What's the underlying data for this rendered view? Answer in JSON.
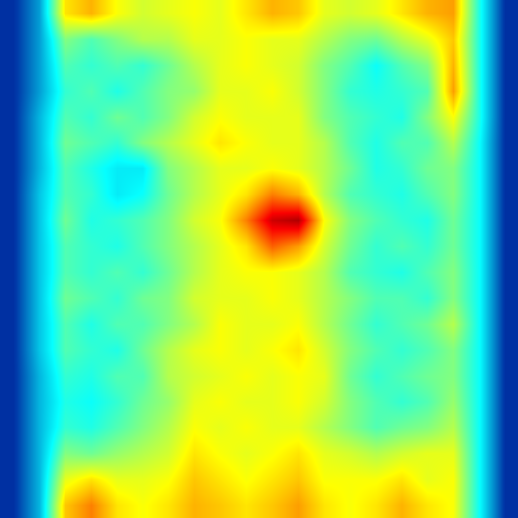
{
  "chart_data": {
    "type": "heatmap",
    "color": "Jet",
    "color_range": [
      0,
      1
    ],
    "tick_labels": false,
    "grid": false,
    "xlim": [
      -0.5,
      19.5
    ],
    "ylim": [
      19.5,
      -0.5
    ],
    "cells": [
      [
        0.1,
        0.25,
        0.65,
        0.7,
        0.62,
        0.58,
        0.6,
        0.62,
        0.6,
        0.65,
        0.7,
        0.68,
        0.6,
        0.58,
        0.6,
        0.65,
        0.7,
        0.72,
        0.4,
        0.1
      ],
      [
        0.1,
        0.25,
        0.5,
        0.45,
        0.5,
        0.55,
        0.55,
        0.6,
        0.6,
        0.62,
        0.6,
        0.6,
        0.55,
        0.5,
        0.48,
        0.55,
        0.6,
        0.68,
        0.4,
        0.1
      ],
      [
        0.1,
        0.25,
        0.45,
        0.42,
        0.45,
        0.42,
        0.48,
        0.55,
        0.6,
        0.62,
        0.6,
        0.58,
        0.5,
        0.45,
        0.38,
        0.45,
        0.5,
        0.7,
        0.4,
        0.1
      ],
      [
        0.1,
        0.25,
        0.42,
        0.45,
        0.4,
        0.45,
        0.5,
        0.52,
        0.6,
        0.6,
        0.62,
        0.58,
        0.5,
        0.42,
        0.4,
        0.42,
        0.45,
        0.72,
        0.4,
        0.1
      ],
      [
        0.1,
        0.28,
        0.45,
        0.42,
        0.48,
        0.45,
        0.5,
        0.58,
        0.62,
        0.6,
        0.6,
        0.6,
        0.5,
        0.45,
        0.42,
        0.4,
        0.5,
        0.62,
        0.4,
        0.1
      ],
      [
        0.1,
        0.28,
        0.48,
        0.45,
        0.42,
        0.5,
        0.55,
        0.6,
        0.65,
        0.62,
        0.6,
        0.6,
        0.55,
        0.45,
        0.4,
        0.45,
        0.45,
        0.55,
        0.38,
        0.1
      ],
      [
        0.1,
        0.28,
        0.45,
        0.4,
        0.35,
        0.35,
        0.5,
        0.55,
        0.6,
        0.6,
        0.62,
        0.6,
        0.55,
        0.48,
        0.4,
        0.42,
        0.48,
        0.5,
        0.38,
        0.1
      ],
      [
        0.1,
        0.3,
        0.45,
        0.42,
        0.35,
        0.38,
        0.48,
        0.55,
        0.6,
        0.65,
        0.75,
        0.7,
        0.55,
        0.45,
        0.42,
        0.4,
        0.45,
        0.5,
        0.38,
        0.1
      ],
      [
        0.1,
        0.3,
        0.48,
        0.4,
        0.42,
        0.45,
        0.5,
        0.58,
        0.62,
        0.75,
        0.92,
        0.95,
        0.62,
        0.5,
        0.45,
        0.42,
        0.4,
        0.48,
        0.38,
        0.1
      ],
      [
        0.1,
        0.3,
        0.45,
        0.42,
        0.4,
        0.45,
        0.5,
        0.55,
        0.6,
        0.65,
        0.78,
        0.72,
        0.58,
        0.48,
        0.42,
        0.45,
        0.42,
        0.48,
        0.38,
        0.1
      ],
      [
        0.1,
        0.3,
        0.45,
        0.42,
        0.45,
        0.42,
        0.48,
        0.55,
        0.6,
        0.62,
        0.62,
        0.6,
        0.55,
        0.45,
        0.42,
        0.4,
        0.45,
        0.5,
        0.38,
        0.1
      ],
      [
        0.1,
        0.3,
        0.48,
        0.45,
        0.42,
        0.48,
        0.5,
        0.58,
        0.6,
        0.6,
        0.62,
        0.6,
        0.55,
        0.5,
        0.45,
        0.45,
        0.42,
        0.5,
        0.38,
        0.1
      ],
      [
        0.1,
        0.3,
        0.45,
        0.4,
        0.45,
        0.45,
        0.5,
        0.55,
        0.62,
        0.6,
        0.6,
        0.62,
        0.55,
        0.48,
        0.42,
        0.45,
        0.48,
        0.55,
        0.38,
        0.1
      ],
      [
        0.1,
        0.3,
        0.45,
        0.42,
        0.4,
        0.48,
        0.55,
        0.6,
        0.62,
        0.6,
        0.62,
        0.65,
        0.58,
        0.5,
        0.45,
        0.42,
        0.45,
        0.5,
        0.38,
        0.1
      ],
      [
        0.1,
        0.28,
        0.42,
        0.4,
        0.45,
        0.45,
        0.55,
        0.58,
        0.6,
        0.62,
        0.6,
        0.62,
        0.6,
        0.48,
        0.42,
        0.45,
        0.48,
        0.5,
        0.38,
        0.1
      ],
      [
        0.1,
        0.28,
        0.4,
        0.38,
        0.42,
        0.48,
        0.52,
        0.6,
        0.62,
        0.6,
        0.6,
        0.62,
        0.58,
        0.5,
        0.45,
        0.42,
        0.45,
        0.52,
        0.38,
        0.1
      ],
      [
        0.1,
        0.28,
        0.42,
        0.4,
        0.45,
        0.5,
        0.55,
        0.62,
        0.6,
        0.62,
        0.6,
        0.6,
        0.55,
        0.5,
        0.45,
        0.48,
        0.5,
        0.55,
        0.38,
        0.1
      ],
      [
        0.1,
        0.28,
        0.5,
        0.48,
        0.52,
        0.55,
        0.58,
        0.65,
        0.62,
        0.6,
        0.62,
        0.65,
        0.6,
        0.58,
        0.55,
        0.58,
        0.6,
        0.6,
        0.38,
        0.1
      ],
      [
        0.1,
        0.28,
        0.6,
        0.65,
        0.6,
        0.6,
        0.62,
        0.68,
        0.65,
        0.62,
        0.65,
        0.68,
        0.62,
        0.62,
        0.62,
        0.65,
        0.6,
        0.62,
        0.38,
        0.1
      ],
      [
        0.1,
        0.28,
        0.68,
        0.75,
        0.65,
        0.62,
        0.65,
        0.7,
        0.68,
        0.65,
        0.68,
        0.72,
        0.65,
        0.62,
        0.65,
        0.7,
        0.65,
        0.62,
        0.38,
        0.1
      ]
    ]
  }
}
